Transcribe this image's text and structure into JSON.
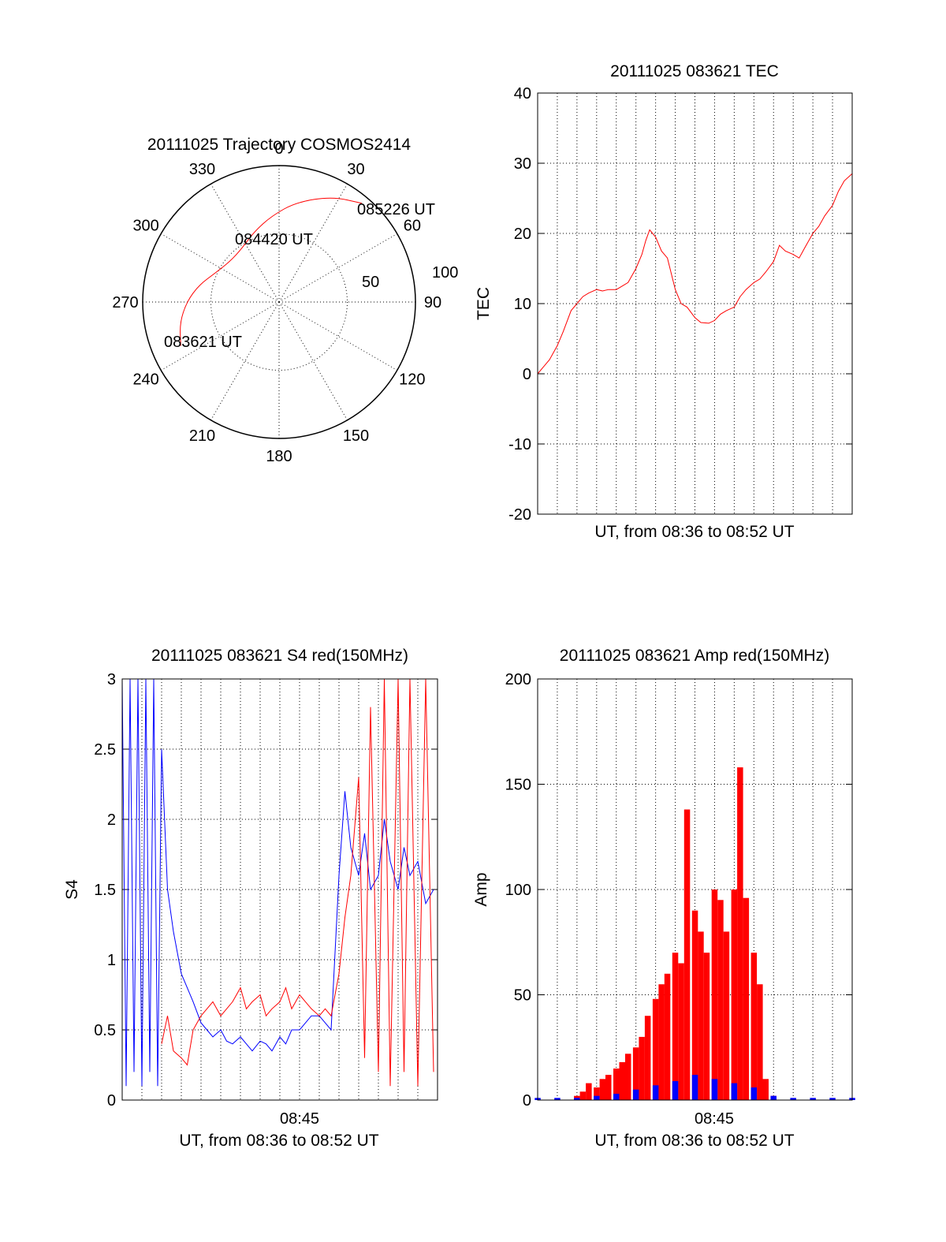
{
  "chart_data": [
    {
      "type": "polar",
      "title": "20111025 Trajectory COSMOS2414",
      "azimuth_labels": [
        "0",
        "30",
        "60",
        "90",
        "120",
        "150",
        "180",
        "210",
        "240",
        "270",
        "300",
        "330"
      ],
      "radial_labels": [
        "50",
        "100"
      ],
      "trajectory": {
        "color": "#ff0000",
        "points": [
          {
            "az": 246,
            "el": 19
          },
          {
            "az": 258,
            "el": 23
          },
          {
            "az": 270,
            "el": 29
          },
          {
            "az": 282,
            "el": 36
          },
          {
            "az": 295,
            "el": 44
          },
          {
            "az": 310,
            "el": 48
          },
          {
            "az": 325,
            "el": 47
          },
          {
            "az": 340,
            "el": 41
          },
          {
            "az": 355,
            "el": 33
          },
          {
            "az": 10,
            "el": 23
          },
          {
            "az": 27,
            "el": 12
          },
          {
            "az": 40,
            "el": 5
          }
        ]
      },
      "annotations": [
        "083621 UT",
        "084420 UT",
        "085226 UT"
      ]
    },
    {
      "type": "line",
      "title": "20111025 083621 TEC",
      "xlabel": "UT, from 08:36 to 08:52 UT",
      "ylabel": "TEC",
      "ylim": [
        -20,
        40
      ],
      "yticks": [
        "40",
        "30",
        "20",
        "10",
        "0",
        "-10",
        "-20"
      ],
      "grid": true,
      "series": [
        {
          "color": "#ff0000",
          "x": [
            0,
            0.3,
            0.6,
            1,
            1.3,
            1.7,
            2,
            2.3,
            2.6,
            3,
            3.3,
            3.6,
            4,
            4.3,
            4.6,
            5,
            5.3,
            5.5,
            5.7,
            6,
            6.3,
            6.6,
            7,
            7.3,
            7.6,
            8,
            8.3,
            8.7,
            9,
            9.3,
            9.6,
            10,
            10.3,
            10.6,
            11,
            11.3,
            11.6,
            12,
            12.3,
            12.6,
            13,
            13.3,
            13.6,
            14,
            14.3,
            14.6,
            15,
            15.3,
            15.6,
            16
          ],
          "y": [
            0,
            1,
            2,
            4,
            6,
            9,
            10,
            11,
            11.5,
            12,
            11.8,
            12,
            12,
            12.5,
            13,
            15,
            17,
            19,
            20.5,
            19.5,
            17.5,
            16.5,
            12,
            10,
            9.5,
            8,
            7.3,
            7.2,
            7.6,
            8.5,
            9,
            9.5,
            11,
            12,
            13,
            13.5,
            14.5,
            16,
            18.3,
            17.5,
            17,
            16.5,
            18,
            20,
            21,
            22.5,
            24,
            26,
            27.5,
            28.5
          ]
        }
      ]
    },
    {
      "type": "line",
      "title": "20111025 083621 S4 red(150MHz)",
      "xlabel": "UT, from 08:36 to 08:52 UT",
      "ylabel": "S4",
      "xtick_label": "08:45",
      "ylim": [
        0,
        3
      ],
      "yticks": [
        "3",
        "2.5",
        "2",
        "1.5",
        "1",
        "0.5",
        "0"
      ],
      "grid": true,
      "series": [
        {
          "color": "#0000ff",
          "x": [
            0,
            0.2,
            0.4,
            0.6,
            0.8,
            1,
            1.2,
            1.4,
            1.6,
            1.8,
            2,
            2.3,
            2.6,
            3,
            3.3,
            3.6,
            4,
            4.3,
            4.6,
            5,
            5.3,
            5.6,
            6,
            6.3,
            6.6,
            7,
            7.3,
            7.6,
            8,
            8.3,
            8.6,
            9,
            9.3,
            9.6,
            10,
            10.3,
            10.6,
            11,
            11.3,
            11.6,
            12,
            12.3,
            12.6,
            13,
            13.3,
            13.6,
            14,
            14.3,
            14.6,
            15,
            15.4,
            15.8
          ],
          "y": [
            3,
            0.1,
            3,
            0.2,
            3,
            0.1,
            3,
            0.2,
            3,
            0.1,
            2.5,
            1.5,
            1.2,
            0.9,
            0.8,
            0.7,
            0.55,
            0.5,
            0.45,
            0.5,
            0.42,
            0.4,
            0.45,
            0.4,
            0.35,
            0.42,
            0.4,
            0.35,
            0.45,
            0.4,
            0.5,
            0.5,
            0.55,
            0.6,
            0.6,
            0.55,
            0.5,
            1.6,
            2.2,
            1.8,
            1.6,
            1.9,
            1.5,
            1.6,
            2,
            1.7,
            1.5,
            1.8,
            1.6,
            1.7,
            1.4,
            1.5
          ]
        },
        {
          "color": "#ff0000",
          "x": [
            2,
            2.3,
            2.6,
            3,
            3.3,
            3.6,
            4,
            4.3,
            4.6,
            5,
            5.3,
            5.6,
            6,
            6.3,
            6.6,
            7,
            7.3,
            7.6,
            8,
            8.3,
            8.6,
            9,
            9.3,
            9.6,
            10,
            10.3,
            10.6,
            11,
            11.3,
            11.6,
            12,
            12.3,
            12.6,
            13,
            13.3,
            13.6,
            14,
            14.3,
            14.6,
            15,
            15.4,
            15.8
          ],
          "y": [
            0.4,
            0.6,
            0.35,
            0.3,
            0.25,
            0.5,
            0.6,
            0.65,
            0.7,
            0.6,
            0.65,
            0.7,
            0.8,
            0.65,
            0.7,
            0.75,
            0.6,
            0.65,
            0.7,
            0.8,
            0.65,
            0.75,
            0.7,
            0.65,
            0.6,
            0.65,
            0.6,
            0.9,
            1.3,
            1.6,
            2.3,
            0.3,
            2.8,
            0.2,
            3,
            0.1,
            3,
            0.2,
            3,
            0.1,
            3,
            0.2
          ]
        }
      ]
    },
    {
      "type": "bar",
      "title": "20111025 083621 Amp red(150MHz)",
      "xlabel": "UT, from 08:36 to 08:52 UT",
      "ylabel": "Amp",
      "xtick_label": "08:45",
      "ylim": [
        0,
        200
      ],
      "yticks": [
        "200",
        "150",
        "100",
        "50",
        "0"
      ],
      "grid": true,
      "series": [
        {
          "color": "#ff0000",
          "x": [
            2,
            2.3,
            2.6,
            3,
            3.3,
            3.6,
            4,
            4.3,
            4.6,
            5,
            5.3,
            5.6,
            6,
            6.3,
            6.6,
            7,
            7.3,
            7.6,
            8,
            8.3,
            8.6,
            9,
            9.3,
            9.6,
            10,
            10.3,
            10.6,
            11,
            11.3,
            11.6,
            12
          ],
          "y": [
            2,
            4,
            8,
            6,
            10,
            12,
            15,
            18,
            22,
            25,
            30,
            40,
            48,
            55,
            60,
            70,
            65,
            138,
            90,
            80,
            70,
            100,
            95,
            80,
            100,
            158,
            96,
            70,
            55,
            10,
            2
          ]
        },
        {
          "color": "#0000ff",
          "x": [
            0,
            1,
            2,
            3,
            4,
            5,
            6,
            7,
            8,
            9,
            10,
            11,
            12,
            13,
            14,
            15,
            16
          ],
          "y": [
            1,
            1,
            1,
            2,
            3,
            5,
            7,
            9,
            12,
            10,
            8,
            6,
            2,
            1,
            1,
            1,
            1
          ]
        }
      ]
    }
  ]
}
